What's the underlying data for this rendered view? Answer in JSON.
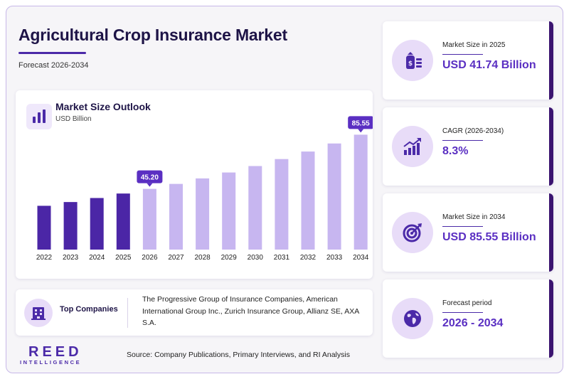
{
  "header": {
    "title": "Agricultural Crop Insurance Market",
    "subtitle": "Forecast 2026-2034"
  },
  "chart_data": {
    "type": "bar",
    "title": "Market Size Outlook",
    "ylabel": "USD Billion",
    "categories": [
      "2022",
      "2023",
      "2024",
      "2025",
      "2026",
      "2027",
      "2028",
      "2029",
      "2030",
      "2031",
      "2032",
      "2033",
      "2034"
    ],
    "values": [
      32.6,
      35.4,
      38.4,
      41.74,
      45.2,
      48.9,
      53.0,
      57.4,
      62.2,
      67.4,
      73.0,
      79.0,
      85.55
    ],
    "data_labels": {
      "4": "45.20",
      "12": "85.55"
    },
    "ylim": [
      0,
      90
    ],
    "grid": false,
    "colors": {
      "historical": "#4b26a6",
      "forecast": "#c7b6f0",
      "label_bg": "#5a2fc2"
    }
  },
  "companies": {
    "label": "Top Companies",
    "text": "The Progressive Group of Insurance Companies, American International Group Inc., Zurich Insurance Group, Allianz SE, AXA S.A."
  },
  "stats": [
    {
      "label": "Market Size in 2025",
      "value": "USD 41.74 Billion",
      "icon": "money-bag-icon"
    },
    {
      "label": "CAGR (2026-2034)",
      "value": "8.3%",
      "icon": "growth-chart-icon"
    },
    {
      "label": "Market Size in 2034",
      "value": "USD 85.55 Billion",
      "icon": "target-icon"
    },
    {
      "label": "Forecast period",
      "value": "2026 - 2034",
      "icon": "globe-icon"
    }
  ],
  "brand": {
    "name": "REED",
    "tagline": "INTELLIGENCE"
  },
  "source": "Source: Company Publications, Primary Interviews, and RI Analysis"
}
